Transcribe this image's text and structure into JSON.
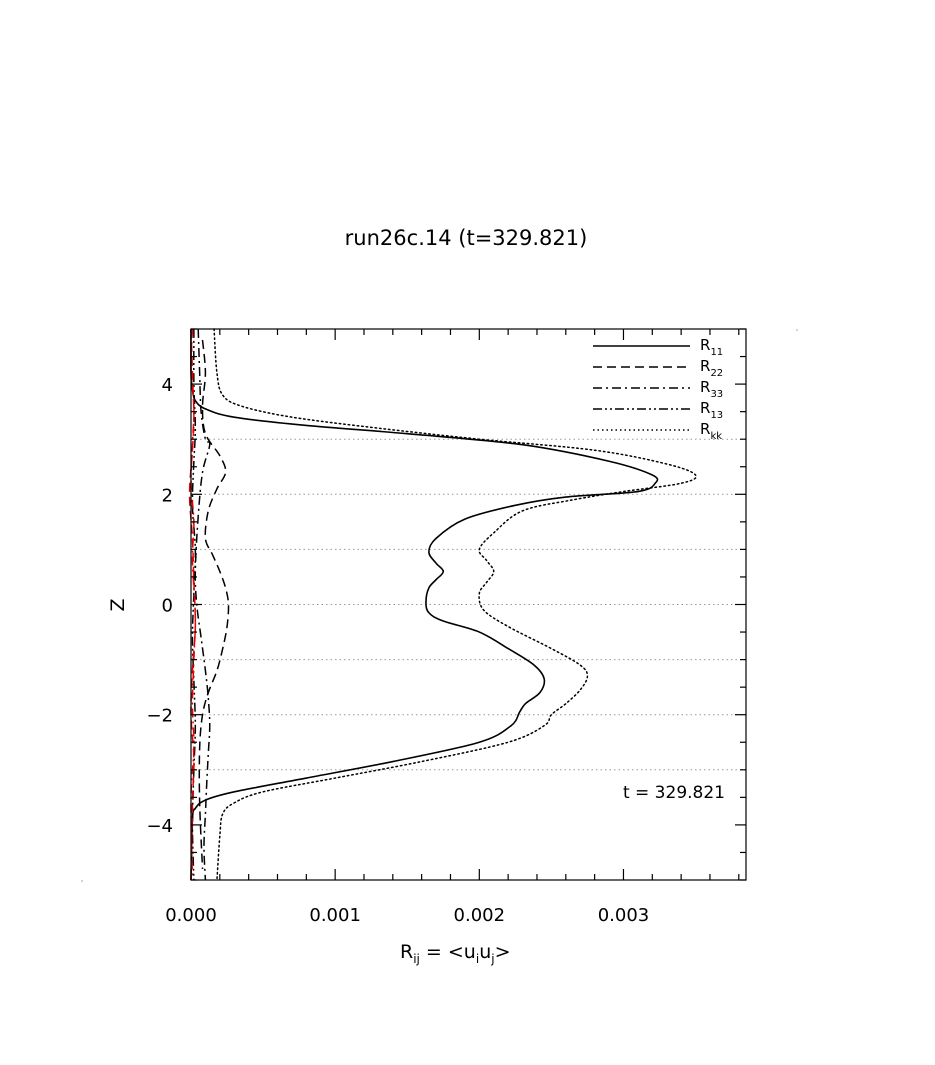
{
  "chart_data": {
    "type": "line",
    "title": "run26c.14 (t=329.821)",
    "xlabel": "R_ij = <u_i u_j>",
    "xlabel_parts": {
      "R": "R",
      "ij": "ij",
      "mid": " = <u",
      "i": "i",
      "u": "u",
      "j": "j",
      "end": ">"
    },
    "ylabel": "Z",
    "xlim": [
      0.0,
      0.00385
    ],
    "ylim": [
      -5,
      5
    ],
    "xticks": [
      0.0,
      0.001,
      0.002,
      0.003
    ],
    "xtick_labels": [
      "0.000",
      "0.001",
      "0.002",
      "0.003"
    ],
    "yticks": [
      -4,
      -2,
      0,
      2,
      4
    ],
    "ytick_labels": [
      "−4",
      "−2",
      "0",
      "2",
      "4"
    ],
    "reference_lines_z": [
      -3,
      -2,
      -1,
      0,
      1,
      2,
      3
    ],
    "annotation": "t = 329.821",
    "legend_position": "top-right",
    "series": [
      {
        "name": "R11",
        "base": "R",
        "sub": "11",
        "style": "solid",
        "color": "#000000",
        "x": [
          0.0,
          0.0,
          1e-05,
          3e-05,
          0.0001,
          0.0003,
          0.0008,
          0.0015,
          0.0023,
          0.0029,
          0.0032,
          0.00322,
          0.0031,
          0.0026,
          0.00225,
          0.0019,
          0.0017,
          0.00165,
          0.0017,
          0.00175,
          0.0017,
          0.00165,
          0.00163,
          0.00165,
          0.00175,
          0.002,
          0.0022,
          0.00238,
          0.00245,
          0.00242,
          0.00232,
          0.00228,
          0.00222,
          0.002,
          0.0014,
          0.0008,
          0.0003,
          0.0001,
          3e-05,
          1e-05,
          0.0
        ],
        "y": [
          5,
          4.2,
          3.9,
          3.7,
          3.55,
          3.4,
          3.25,
          3.1,
          2.9,
          2.6,
          2.35,
          2.2,
          2.05,
          1.95,
          1.8,
          1.55,
          1.2,
          0.95,
          0.75,
          0.6,
          0.45,
          0.3,
          0.05,
          -0.15,
          -0.3,
          -0.5,
          -0.8,
          -1.1,
          -1.35,
          -1.6,
          -1.8,
          -1.95,
          -2.2,
          -2.5,
          -2.85,
          -3.15,
          -3.4,
          -3.55,
          -3.7,
          -3.9,
          -5
        ]
      },
      {
        "name": "R22",
        "base": "R",
        "sub": "22",
        "style": "dashed",
        "color": "#000000",
        "x": [
          8e-05,
          0.0001,
          8e-05,
          0.0001,
          0.0002,
          0.00024,
          0.00018,
          0.00012,
          0.0001,
          0.00015,
          0.0002,
          0.00024,
          0.00026,
          0.00025,
          0.00022,
          0.00018,
          0.00012,
          8e-05,
          6e-05,
          6e-05,
          8e-05
        ],
        "y": [
          4.8,
          4.2,
          3.6,
          3.1,
          2.7,
          2.4,
          2.1,
          1.7,
          1.2,
          0.9,
          0.6,
          0.3,
          0.0,
          -0.4,
          -0.8,
          -1.2,
          -1.6,
          -2.0,
          -2.6,
          -3.6,
          -4.8
        ]
      },
      {
        "name": "R33",
        "base": "R",
        "sub": "33",
        "style": "dashdot",
        "color": "#000000",
        "x": [
          5e-05,
          6e-05,
          7e-05,
          0.0001,
          0.00013,
          8e-05,
          5e-05,
          3e-05,
          4e-05,
          7e-05,
          0.0001,
          0.00012,
          0.00013,
          0.00012,
          0.00011,
          0.0001,
          9e-05,
          0.0001
        ],
        "y": [
          5,
          4.2,
          3.5,
          3.0,
          2.9,
          2.4,
          1.6,
          0.6,
          0.0,
          -0.6,
          -1.2,
          -1.7,
          -2.2,
          -2.7,
          -3.2,
          -3.8,
          -4.4,
          -5
        ]
      },
      {
        "name": "R13",
        "base": "R",
        "sub": "13",
        "style": "dashdotdot",
        "color": "#000000",
        "x": [
          2e-05,
          2e-05,
          3e-05,
          2e-05,
          1e-05,
          3e-05,
          2e-05,
          1e-05,
          2e-05,
          3e-05,
          2e-05,
          1e-05,
          2e-05
        ],
        "y": [
          5,
          4.0,
          3.2,
          2.6,
          1.8,
          1.0,
          0.2,
          -0.6,
          -1.4,
          -2.2,
          -3.0,
          -4.0,
          -5
        ]
      },
      {
        "name": "Rkk",
        "base": "R",
        "sub": "kk",
        "style": "dotted",
        "color": "#000000",
        "x": [
          0.00016,
          0.00018,
          0.00022,
          0.00035,
          0.0007,
          0.0013,
          0.002,
          0.0028,
          0.0033,
          0.0035,
          0.0034,
          0.003,
          0.00265,
          0.0023,
          0.0021,
          0.002,
          0.00205,
          0.0021,
          0.00205,
          0.002,
          0.00203,
          0.0022,
          0.0025,
          0.0027,
          0.00275,
          0.0027,
          0.0026,
          0.0025,
          0.00245,
          0.0022,
          0.0016,
          0.001,
          0.0005,
          0.0003,
          0.00022,
          0.0002,
          0.00018
        ],
        "y": [
          5,
          4.2,
          3.8,
          3.6,
          3.4,
          3.2,
          3.0,
          2.8,
          2.55,
          2.35,
          2.2,
          2.05,
          1.9,
          1.7,
          1.3,
          1.0,
          0.8,
          0.6,
          0.4,
          0.2,
          -0.1,
          -0.4,
          -0.8,
          -1.1,
          -1.3,
          -1.55,
          -1.8,
          -2.0,
          -2.2,
          -2.5,
          -2.85,
          -3.15,
          -3.4,
          -3.6,
          -3.8,
          -4.2,
          -5
        ]
      },
      {
        "name": "",
        "style": "dashed",
        "color": "#e00000",
        "x": [
          0.0,
          1e-05,
          2e-05,
          1e-05,
          -1e-05,
          1e-05,
          2e-05,
          3e-05,
          1e-05,
          0.0,
          2e-05,
          1e-05,
          0.0
        ],
        "y": [
          5,
          4.2,
          3.4,
          2.8,
          2.0,
          1.2,
          0.4,
          -0.4,
          -1.2,
          -2.0,
          -2.8,
          -3.6,
          -5
        ]
      },
      {
        "name": "",
        "style": "dashdot",
        "color": "#e00000",
        "x": [
          1e-05,
          0.0,
          2e-05,
          1e-05,
          0.0,
          2e-05,
          1e-05,
          3e-05,
          2e-05,
          1e-05,
          2e-05,
          0.0,
          1e-05
        ],
        "y": [
          5,
          4.3,
          3.6,
          2.9,
          2.2,
          1.5,
          0.8,
          -0.2,
          -1.0,
          -1.8,
          -2.6,
          -3.5,
          -5
        ]
      }
    ]
  }
}
